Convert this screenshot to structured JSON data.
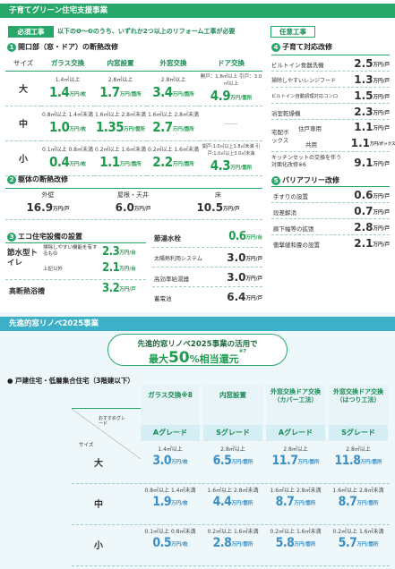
{
  "header1": "子育てグリーン住宅支援事業",
  "required_label": "必須工事",
  "required_note": "以下の❶〜❸のうち、いずれか2つ以上のリフォーム工事が必要",
  "optional_label": "任意工事",
  "s1": {
    "num": "1",
    "title": "開口部（窓・ドア）の断熱改修",
    "col_size": "サイズ",
    "cols": [
      "ガラス交換",
      "内窓設置",
      "外窓交換",
      "ドア交換"
    ],
    "rows": [
      {
        "size": "大",
        "cells": [
          {
            "cond": "1.4㎡以上",
            "val": "1.4",
            "unit": "万円/枚"
          },
          {
            "cond": "2.8㎡以上",
            "val": "1.7",
            "unit": "万円/箇所"
          },
          {
            "cond": "2.8㎡以上",
            "val": "3.4",
            "unit": "万円/箇所"
          },
          {
            "cond": "開戸：1.8㎡以上 引戸：3.0㎡以上",
            "val": "4.9",
            "unit": "万円/箇所"
          }
        ]
      },
      {
        "size": "中",
        "cells": [
          {
            "cond": "0.8㎡以上 1.4㎡未満",
            "val": "1.0",
            "unit": "万円/枚"
          },
          {
            "cond": "1.6㎡以上 2.8㎡未満",
            "val": "1.35",
            "unit": "万円/箇所"
          },
          {
            "cond": "1.6㎡以上 2.8㎡未満",
            "val": "2.7",
            "unit": "万円/箇所"
          },
          {
            "cond": "",
            "val": "――",
            "unit": ""
          }
        ]
      },
      {
        "size": "小",
        "cells": [
          {
            "cond": "0.1㎡以上 0.8㎡未満",
            "val": "0.4",
            "unit": "万円/枚"
          },
          {
            "cond": "0.2㎡以上 1.6㎡未満",
            "val": "1.1",
            "unit": "万円/箇所"
          },
          {
            "cond": "0.2㎡以上 1.6㎡未満",
            "val": "2.2",
            "unit": "万円/箇所"
          },
          {
            "cond": "開戸:1.0㎡以上1.8㎡未満 引戸:1.0㎡以上3.0㎡未満",
            "val": "4.3",
            "unit": "万円/箇所"
          }
        ]
      }
    ]
  },
  "s2": {
    "num": "2",
    "title": "躯体の断熱改修",
    "cols": [
      "外壁",
      "屋根・天井",
      "床"
    ],
    "vals": [
      "16.9",
      "6.0",
      "10.5"
    ],
    "unit": "万円/戸"
  },
  "s3": {
    "num": "3",
    "title": "エコ住宅設備の設置",
    "toilet_label": "節水型トイレ",
    "toilet_rows": [
      {
        "label": "掃除しやすい機能を有するもの",
        "val": "2.3",
        "unit": "万円/台"
      },
      {
        "label": "上記以外",
        "val": "2.1",
        "unit": "万円/台"
      }
    ],
    "bath_label": "高断熱浴槽",
    "bath_val": "3.2",
    "bath_unit": "万円/戸",
    "right_rows": [
      {
        "label": "節湯水栓",
        "val": "0.6",
        "unit": "万円/台"
      },
      {
        "label": "太陽熱利用システム",
        "val": "3.0",
        "unit": "万円/戸"
      },
      {
        "label": "高効率給湯器",
        "val": "3.0",
        "unit": "万円/戸"
      },
      {
        "label": "蓄電池",
        "val": "6.4",
        "unit": "万円/戸"
      }
    ]
  },
  "s4": {
    "num": "4",
    "title": "子育て対応改修",
    "rows": [
      {
        "label": "ビルトイン食器洗機",
        "val": "2.5",
        "unit": "万円/戸"
      },
      {
        "label": "掃除しやすいレンジフード",
        "val": "1.3",
        "unit": "万円/戸"
      },
      {
        "label": "ビルトイン自動調理対応コンロ",
        "val": "1.5",
        "unit": "万円/戸"
      },
      {
        "label": "浴室乾燥機",
        "val": "2.3",
        "unit": "万円/戸"
      },
      {
        "label": "住戸専用",
        "val": "1.1",
        "unit": "万円/戸"
      },
      {
        "label": "共用",
        "val": "1.1",
        "unit": "万円/ボックス※5"
      },
      {
        "label": "キッチンセットの交換を伴う対面化改修※6",
        "val": "9.1",
        "unit": "万円/戸"
      }
    ],
    "delivery_label": "宅配ボックス"
  },
  "s5": {
    "num": "5",
    "title": "バリアフリー改修",
    "rows": [
      {
        "label": "手すりの設置",
        "val": "0.6",
        "unit": "万円/戸"
      },
      {
        "label": "段差解消",
        "val": "0.7",
        "unit": "万円/戸"
      },
      {
        "label": "廊下幅等の拡張",
        "val": "2.8",
        "unit": "万円/戸"
      },
      {
        "label": "衝撃緩和畳の設置",
        "val": "2.1",
        "unit": "万円/戸"
      }
    ]
  },
  "header2": "先進的窓リノベ2025事業",
  "banner": {
    "line1": "先進的窓リノベ2025事業の活用で",
    "pre": "最大",
    "pct": "50",
    "post": "%相当還元",
    "note": "※7"
  },
  "s6": {
    "title": "● 戸建住宅・低層集合住宅（3階建以下）",
    "corner_grade": "おすすめグレード",
    "corner_size": "サイズ",
    "cols": [
      "ガラス交換※8",
      "内窓設置",
      "外窓交換ドア交換（カバー工法）",
      "外窓交換ドア交換（はつり工法）"
    ],
    "grades": [
      "Aグレード",
      "Sグレード",
      "Aグレード",
      "Sグレード"
    ],
    "rows": [
      {
        "size": "大",
        "cells": [
          {
            "cond": "1.4㎡以上",
            "val": "3.0",
            "unit": "万円/枚"
          },
          {
            "cond": "2.8㎡以上",
            "val": "6.5",
            "unit": "万円/箇所"
          },
          {
            "cond": "2.8㎡以上",
            "val": "11.7",
            "unit": "万円/箇所"
          },
          {
            "cond": "2.8㎡以上",
            "val": "11.8",
            "unit": "万円/箇所"
          }
        ]
      },
      {
        "size": "中",
        "cells": [
          {
            "cond": "0.8㎡以上 1.4㎡未満",
            "val": "1.9",
            "unit": "万円/枚"
          },
          {
            "cond": "1.6㎡以上 2.8㎡未満",
            "val": "4.4",
            "unit": "万円/箇所"
          },
          {
            "cond": "1.6㎡以上 2.8㎡未満",
            "val": "8.7",
            "unit": "万円/箇所"
          },
          {
            "cond": "1.6㎡以上 2.8㎡未満",
            "val": "8.7",
            "unit": "万円/箇所"
          }
        ]
      },
      {
        "size": "小",
        "cells": [
          {
            "cond": "0.1㎡以上 0.8㎡未満",
            "val": "0.5",
            "unit": "万円/枚"
          },
          {
            "cond": "0.2㎡以上 1.6㎡未満",
            "val": "2.8",
            "unit": "万円/箇所"
          },
          {
            "cond": "0.2㎡以上 1.6㎡未満",
            "val": "5.8",
            "unit": "万円/箇所"
          },
          {
            "cond": "0.2㎡以上 1.6㎡未満",
            "val": "5.7",
            "unit": "万円/箇所"
          }
        ]
      }
    ]
  },
  "colors": {
    "green": "#27a86a",
    "dark_green": "#1e9b4e",
    "light_blue": "#d5eef3"
  }
}
